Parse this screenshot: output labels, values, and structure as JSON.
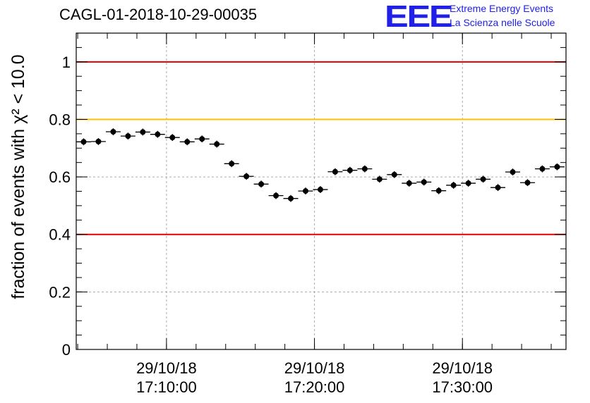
{
  "header": {
    "run_title": "CAGL-01-2018-10-29-00035",
    "logo_text": "EEE",
    "logo_line1": "Extreme Energy Events",
    "logo_line2": "La Scienza nelle Scuole"
  },
  "colors": {
    "upper_limit": "#e00000",
    "lower_limit": "#e00000",
    "warning_line": "#ffc000",
    "markers": "#000000",
    "logo": "#2020e8"
  },
  "chart_data": {
    "type": "scatter",
    "title": "CAGL-01-2018-10-29-00035",
    "ylabel": "fraction of events with χ² < 10.0",
    "xlabel": "",
    "xlim": [
      "29/10/18 17:03:54",
      "29/10/18 17:37:00"
    ],
    "ylim": [
      0,
      1.1
    ],
    "grid": true,
    "y_ticks": [
      "0",
      "0.2",
      "0.4",
      "0.6",
      "0.8",
      "1"
    ],
    "x_ticks": [
      {
        "date": "29/10/18",
        "time": "17:10:00"
      },
      {
        "date": "29/10/18",
        "time": "17:20:00"
      },
      {
        "date": "29/10/18",
        "time": "17:30:00"
      }
    ],
    "reference_lines": [
      {
        "y": 1.0,
        "color": "#e00000"
      },
      {
        "y": 0.8,
        "color": "#ffc000"
      },
      {
        "y": 0.4,
        "color": "#e00000"
      }
    ],
    "bin_width_seconds": 60,
    "series": [
      {
        "x": [
          "17:04:24",
          "17:05:24",
          "17:06:24",
          "17:07:24",
          "17:08:24",
          "17:09:24",
          "17:10:24",
          "17:11:24",
          "17:12:24",
          "17:13:24",
          "17:14:24",
          "17:15:24",
          "17:16:24",
          "17:17:24",
          "17:18:24",
          "17:19:24",
          "17:20:24",
          "17:21:24",
          "17:22:24",
          "17:23:24",
          "17:24:24",
          "17:25:24",
          "17:26:24",
          "17:27:24",
          "17:28:24",
          "17:29:24",
          "17:30:24",
          "17:31:24",
          "17:32:24",
          "17:33:24",
          "17:34:24",
          "17:35:24",
          "17:36:24"
        ],
        "y": [
          0.722,
          0.723,
          0.757,
          0.742,
          0.756,
          0.748,
          0.737,
          0.722,
          0.732,
          0.714,
          0.646,
          0.602,
          0.575,
          0.535,
          0.525,
          0.551,
          0.556,
          0.618,
          0.623,
          0.628,
          0.592,
          0.608,
          0.578,
          0.582,
          0.552,
          0.571,
          0.578,
          0.592,
          0.563,
          0.617,
          0.58,
          0.628,
          0.635
        ],
        "y_err": [
          0.012,
          0.012,
          0.012,
          0.012,
          0.012,
          0.012,
          0.012,
          0.012,
          0.012,
          0.012,
          0.012,
          0.012,
          0.012,
          0.012,
          0.012,
          0.012,
          0.012,
          0.012,
          0.012,
          0.012,
          0.012,
          0.012,
          0.012,
          0.012,
          0.012,
          0.012,
          0.012,
          0.012,
          0.012,
          0.012,
          0.012,
          0.012,
          0.012
        ]
      }
    ]
  }
}
